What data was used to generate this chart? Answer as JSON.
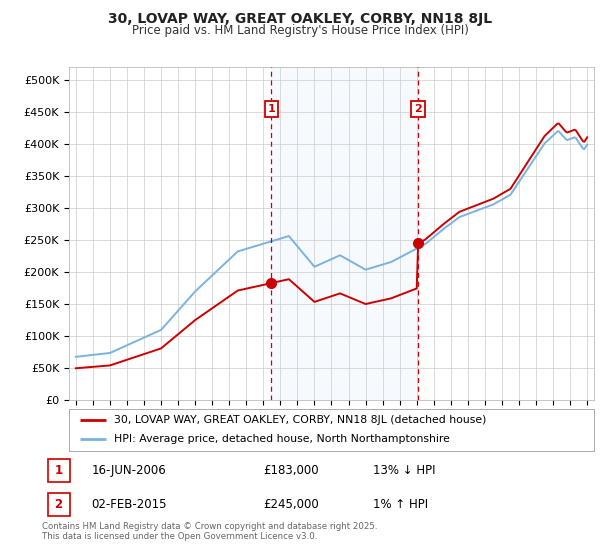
{
  "title": "30, LOVAP WAY, GREAT OAKLEY, CORBY, NN18 8JL",
  "subtitle": "Price paid vs. HM Land Registry's House Price Index (HPI)",
  "ylabel_ticks": [
    "£0",
    "£50K",
    "£100K",
    "£150K",
    "£200K",
    "£250K",
    "£300K",
    "£350K",
    "£400K",
    "£450K",
    "£500K"
  ],
  "ytick_values": [
    0,
    50000,
    100000,
    150000,
    200000,
    250000,
    300000,
    350000,
    400000,
    450000,
    500000
  ],
  "ylim": [
    0,
    520000
  ],
  "xlim_start": 1994.6,
  "xlim_end": 2025.4,
  "sale1_x": 2006.46,
  "sale1_y": 183000,
  "sale1_label": "1",
  "sale2_x": 2015.08,
  "sale2_y": 245000,
  "sale2_label": "2",
  "hpi_color": "#7ab3e0",
  "price_color": "#cc0000",
  "annotation_box_color": "#cc0000",
  "vline_color": "#cc0000",
  "shaded_color": "#ddeeff",
  "legend_line1": "30, LOVAP WAY, GREAT OAKLEY, CORBY, NN18 8JL (detached house)",
  "legend_line2": "HPI: Average price, detached house, North Northamptonshire",
  "note1_label": "1",
  "note1_date": "16-JUN-2006",
  "note1_price": "£183,000",
  "note1_hpi": "13% ↓ HPI",
  "note2_label": "2",
  "note2_date": "02-FEB-2015",
  "note2_price": "£245,000",
  "note2_hpi": "1% ↑ HPI",
  "footer": "Contains HM Land Registry data © Crown copyright and database right 2025.\nThis data is licensed under the Open Government Licence v3.0.",
  "background_color": "#ffffff",
  "plot_bg_color": "#ffffff",
  "grid_color": "#cccccc"
}
